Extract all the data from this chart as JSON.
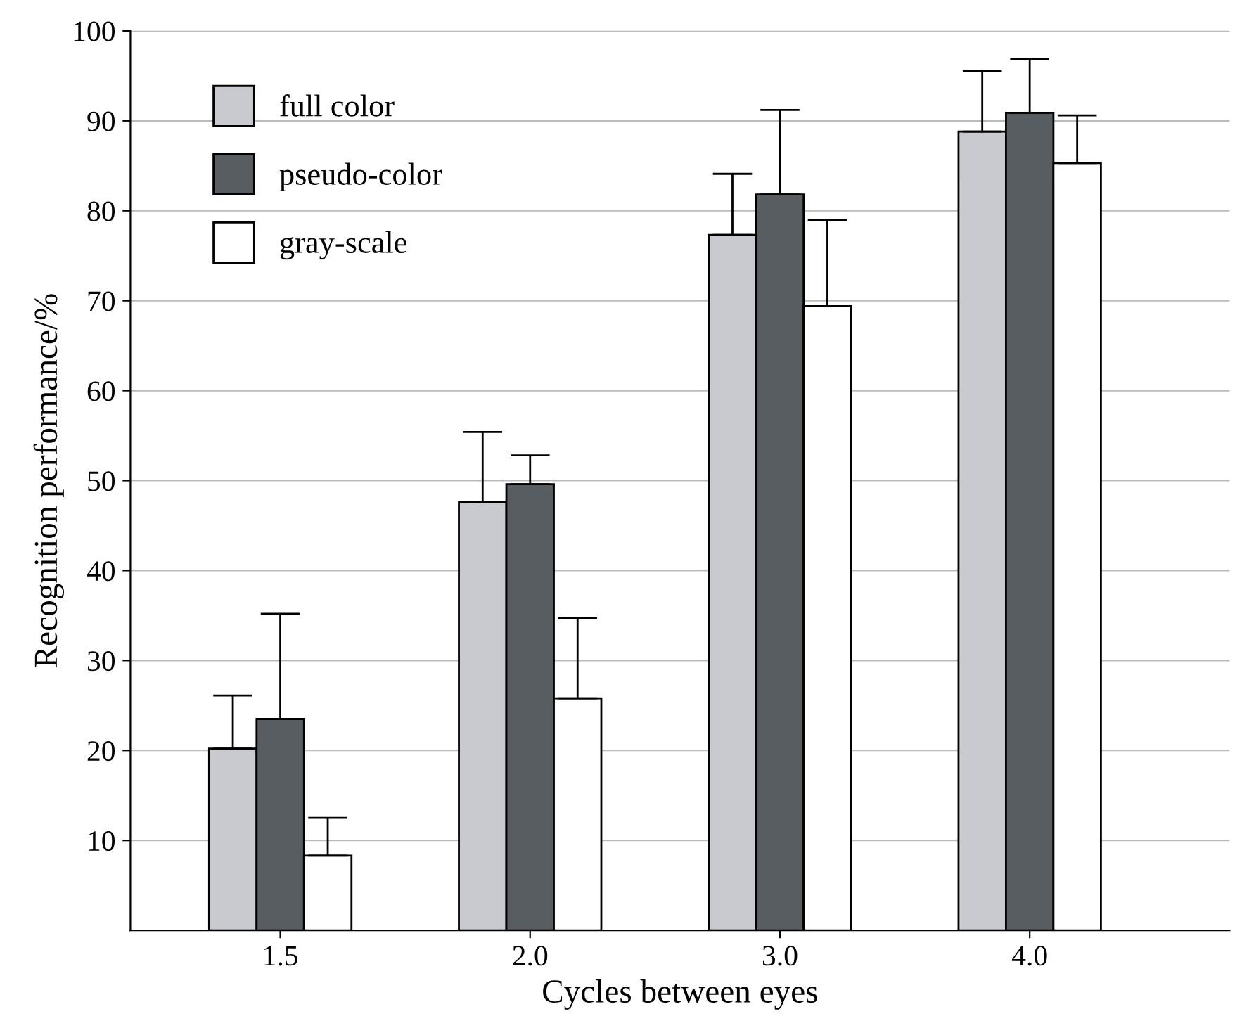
{
  "chart_data": {
    "type": "bar",
    "xlabel": "Cycles between eyes",
    "ylabel": "Recognition performance/%",
    "categories": [
      "1.5",
      "2.0",
      "3.0",
      "4.0"
    ],
    "series": [
      {
        "name": "full color",
        "color": "#c8cacf",
        "values": [
          20.2,
          47.6,
          77.3,
          88.8
        ],
        "errors": [
          [
            20.2,
            26.1
          ],
          [
            47.6,
            55.4
          ],
          [
            77.3,
            84.1
          ],
          [
            88.8,
            95.5
          ]
        ]
      },
      {
        "name": "pseudo-color",
        "color": "#575d60",
        "values": [
          23.5,
          49.6,
          81.8,
          90.9
        ],
        "errors": [
          [
            23.5,
            35.2
          ],
          [
            49.6,
            52.8
          ],
          [
            81.8,
            91.2
          ],
          [
            90.9,
            96.9
          ]
        ]
      },
      {
        "name": "gray-scale",
        "color": "#ffffff",
        "values": [
          8.3,
          25.8,
          69.4,
          85.3
        ],
        "errors": [
          [
            8.3,
            12.5
          ],
          [
            25.8,
            34.7
          ],
          [
            69.4,
            79.0
          ],
          [
            85.3,
            90.6
          ]
        ]
      }
    ],
    "ylim": [
      0,
      100
    ],
    "yticks": [
      10,
      20,
      30,
      40,
      50,
      60,
      70,
      80,
      90,
      100
    ],
    "grid": "y",
    "legend": "top left"
  }
}
